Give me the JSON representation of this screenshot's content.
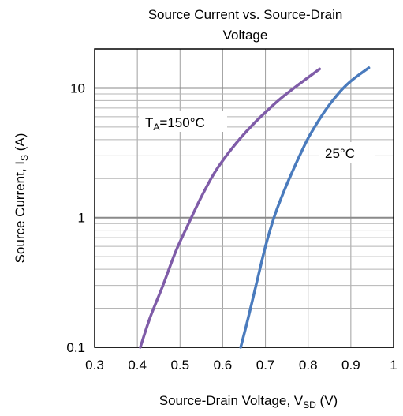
{
  "chart_data": {
    "type": "line",
    "title_line1": "Source Current vs. Source-Drain",
    "title_line2": "Voltage",
    "xlabel": {
      "main": "Source-Drain Voltage, V",
      "sub": "SD",
      "suffix": " (V)"
    },
    "ylabel": {
      "main": "Source Current, I",
      "sub": "S",
      "suffix": " (A)"
    },
    "xlim": [
      0.3,
      1.0
    ],
    "ylim": [
      0.1,
      20
    ],
    "yscale": "log",
    "grid": true,
    "x_ticks": [
      {
        "value": 0.3,
        "label": "0.3"
      },
      {
        "value": 0.4,
        "label": "0.4"
      },
      {
        "value": 0.5,
        "label": "0.5"
      },
      {
        "value": 0.6,
        "label": "0.6"
      },
      {
        "value": 0.7,
        "label": "0.7"
      },
      {
        "value": 0.8,
        "label": "0.8"
      },
      {
        "value": 0.9,
        "label": "0.9"
      },
      {
        "value": 1.0,
        "label": "1"
      }
    ],
    "y_ticks": [
      {
        "value": 0.1,
        "label": "0.1"
      },
      {
        "value": 1,
        "label": "1"
      },
      {
        "value": 10,
        "label": "10"
      }
    ],
    "series": [
      {
        "color": "#7f5ca8",
        "x": [
          0.407,
          0.43,
          0.46,
          0.49,
          0.52,
          0.55,
          0.58,
          0.61,
          0.64,
          0.67,
          0.7,
          0.73,
          0.76,
          0.79,
          0.827
        ],
        "y": [
          0.1,
          0.17,
          0.3,
          0.55,
          0.9,
          1.45,
          2.2,
          3.05,
          4.05,
          5.2,
          6.5,
          8.0,
          9.6,
          11.4,
          14.0
        ]
      },
      {
        "color": "#4a7bbd",
        "x": [
          0.642,
          0.66,
          0.68,
          0.7,
          0.72,
          0.74,
          0.76,
          0.78,
          0.8,
          0.82,
          0.84,
          0.86,
          0.88,
          0.9,
          0.92,
          0.942
        ],
        "y": [
          0.1,
          0.17,
          0.32,
          0.6,
          1.0,
          1.5,
          2.15,
          3.0,
          4.1,
          5.3,
          6.7,
          8.2,
          9.8,
          11.3,
          12.7,
          14.3
        ]
      }
    ],
    "annotations": [
      {
        "main": "T",
        "sub": "A",
        "suffix": "=150°C"
      },
      {
        "main": "25°C"
      }
    ]
  }
}
